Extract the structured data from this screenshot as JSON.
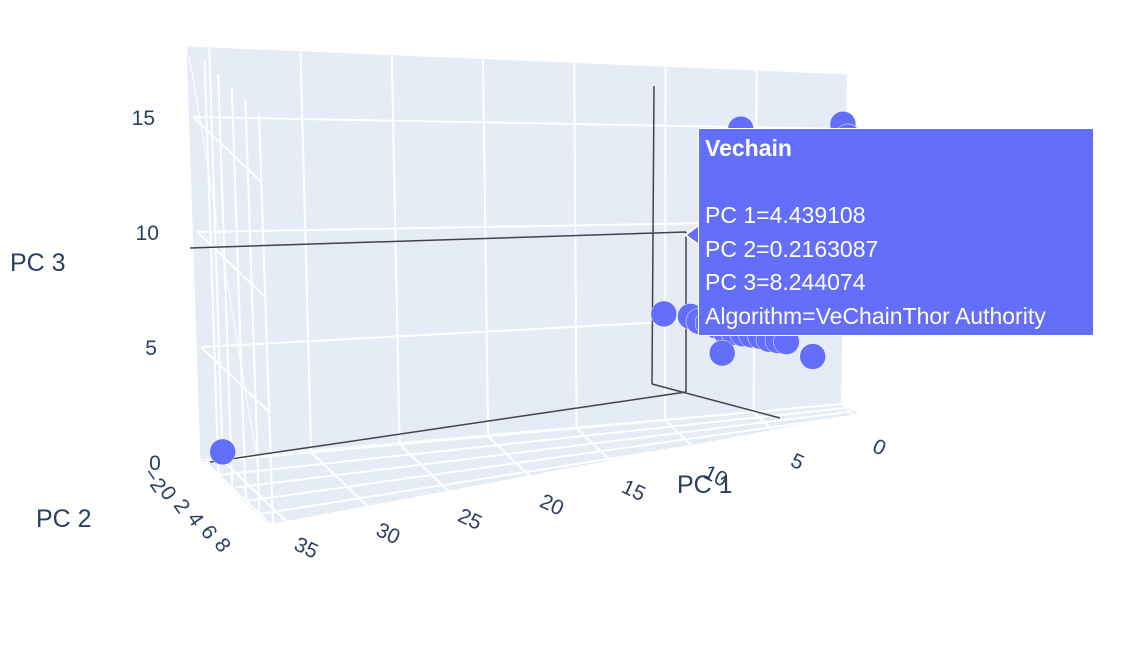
{
  "chart_data": {
    "type": "scatter3d",
    "axes": {
      "x": {
        "title": "PC 1",
        "ticks": [
          "0",
          "5",
          "10",
          "15",
          "20",
          "25",
          "30",
          "35"
        ]
      },
      "y": {
        "title": "PC 2",
        "ticks": [
          "−2",
          "0",
          "2",
          "4",
          "6",
          "8"
        ]
      },
      "z": {
        "title": "PC 3",
        "ticks": [
          "0",
          "5",
          "10",
          "15"
        ]
      }
    },
    "marker_color": "#636efa",
    "points": [
      {
        "x": 35.5,
        "y": -0.6,
        "z": 0.8
      },
      {
        "x": 10.5,
        "y": 0.2,
        "z": 5.8
      },
      {
        "x": 9.0,
        "y": 0.3,
        "z": 5.6
      },
      {
        "x": 8.5,
        "y": 0.2,
        "z": 5.3
      },
      {
        "x": 8.0,
        "y": 0.3,
        "z": 5.2
      },
      {
        "x": 7.5,
        "y": 0.2,
        "z": 5.0
      },
      {
        "x": 7.0,
        "y": 0.3,
        "z": 4.7
      },
      {
        "x": 6.5,
        "y": 0.2,
        "z": 4.6
      },
      {
        "x": 6.0,
        "y": 0.3,
        "z": 4.5
      },
      {
        "x": 5.5,
        "y": 0.2,
        "z": 4.4
      },
      {
        "x": 5.0,
        "y": 0.3,
        "z": 4.3
      },
      {
        "x": 4.5,
        "y": 0.2,
        "z": 4.1
      },
      {
        "x": 4.0,
        "y": 0.3,
        "z": 4.0
      },
      {
        "x": 3.5,
        "y": 0.2,
        "z": 3.9
      },
      {
        "x": 7.2,
        "y": 0.4,
        "z": 3.6
      },
      {
        "x": 2.0,
        "y": 0.3,
        "z": 3.0
      },
      {
        "x": 4.439108,
        "y": 0.2163087,
        "z": 8.244074
      },
      {
        "x": 6.2,
        "y": 0.2,
        "z": 15.2
      },
      {
        "x": 0.5,
        "y": 0.3,
        "z": 15.5
      },
      {
        "x": 0.2,
        "y": 0.2,
        "z": 14.8
      }
    ],
    "hover": {
      "title": "Vechain",
      "lines": [
        "PC 1=4.439108",
        "PC 2=0.2163087",
        "PC 3=8.244074",
        "Algorithm=VeChainThor Authority"
      ]
    }
  }
}
